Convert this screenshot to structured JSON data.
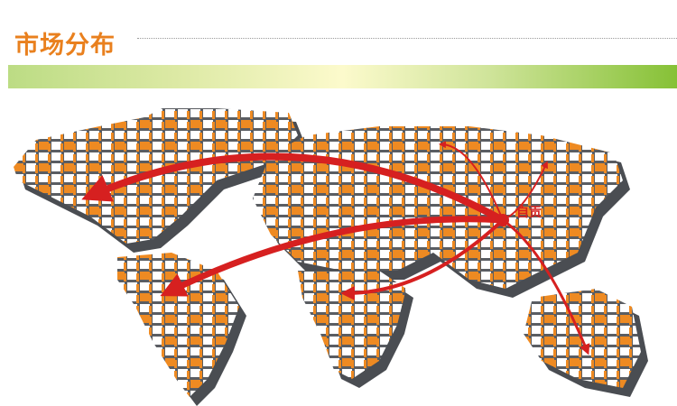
{
  "header": {
    "title": "市场分布"
  },
  "map": {
    "origin_label": "自贡",
    "colors": {
      "title": "#e9801e",
      "arrow": "#d62020",
      "tile_orange": "#ee8a22",
      "tile_gray": "#4a4d52",
      "tile_white": "#ffffff"
    }
  }
}
